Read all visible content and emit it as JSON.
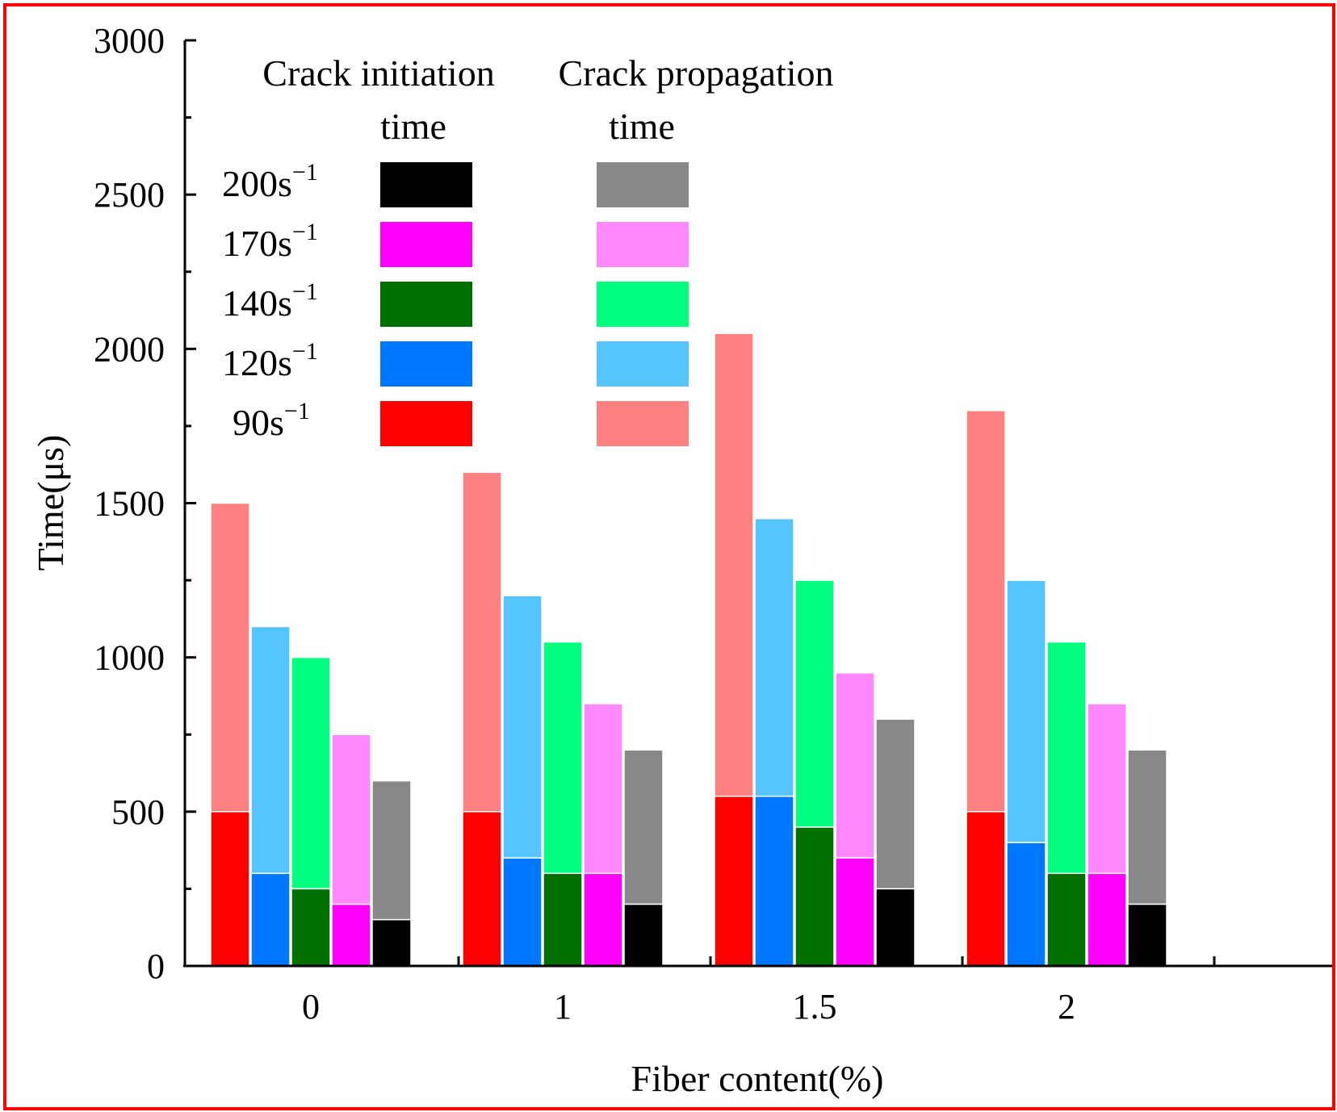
{
  "chart_data": {
    "type": "bar",
    "stacked_within_bar": true,
    "title": "",
    "xlabel": "Fiber content(%)",
    "ylabel": "Time(μs)",
    "ylim": [
      0,
      3000
    ],
    "yticks": [
      "0",
      "500",
      "1000",
      "1500",
      "2000",
      "2500",
      "3000"
    ],
    "categories": [
      "0",
      "1",
      "1.5",
      "2"
    ],
    "legend": {
      "header_initiation_line1": "Crack initiation",
      "header_initiation_line2": "time",
      "header_propagation_line1": "Crack propagation",
      "header_propagation_line2": "time",
      "position": "top-left"
    },
    "series": [
      {
        "name": "90s",
        "superscript": "−1",
        "initiation_color": "#ff0000",
        "propagation_color": "#ff8080",
        "initiation": [
          500,
          500,
          550,
          500
        ],
        "total": [
          1500,
          1600,
          2050,
          1800
        ]
      },
      {
        "name": "120s",
        "superscript": "−1",
        "initiation_color": "#0077ff",
        "propagation_color": "#55c5ff",
        "initiation": [
          300,
          350,
          550,
          400
        ],
        "total": [
          1100,
          1200,
          1450,
          1250
        ]
      },
      {
        "name": "140s",
        "superscript": "−1",
        "initiation_color": "#007000",
        "propagation_color": "#00ff7f",
        "initiation": [
          250,
          300,
          450,
          300
        ],
        "total": [
          1000,
          1050,
          1250,
          1050
        ]
      },
      {
        "name": "170s",
        "superscript": "−1",
        "initiation_color": "#ff00ff",
        "propagation_color": "#ff88ff",
        "initiation": [
          200,
          300,
          350,
          300
        ],
        "total": [
          750,
          850,
          950,
          850
        ]
      },
      {
        "name": "200s",
        "superscript": "−1",
        "initiation_color": "#000000",
        "propagation_color": "#888888",
        "initiation": [
          150,
          200,
          250,
          200
        ],
        "total": [
          600,
          700,
          800,
          700
        ]
      }
    ]
  }
}
